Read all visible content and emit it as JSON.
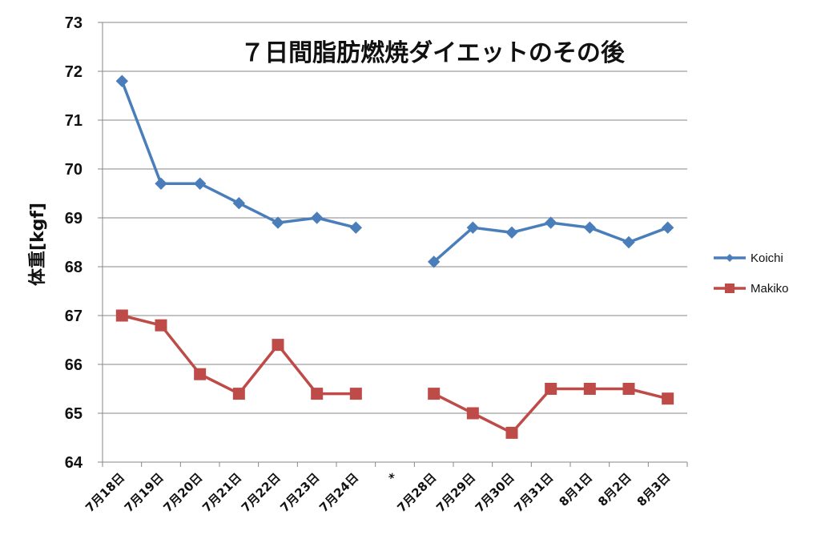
{
  "chart_data": {
    "type": "line",
    "title": "７日間脂肪燃焼ダイエットのその後",
    "ylabel": "体重[kgf]",
    "xlabel": "",
    "ylim": [
      64,
      73
    ],
    "yticks": [
      "64",
      "65",
      "66",
      "67",
      "68",
      "69",
      "70",
      "71",
      "72",
      "73"
    ],
    "categories": [
      "7月18日",
      "7月19日",
      "7月20日",
      "7月21日",
      "7月22日",
      "7月23日",
      "7月24日",
      "*",
      "7月28日",
      "7月29日",
      "7月30日",
      "7月31日",
      "8月1日",
      "8月2日",
      "8月3日"
    ],
    "series": [
      {
        "name": "Koichi",
        "color": "#4A7EBB",
        "marker": "diamond",
        "values": [
          71.8,
          69.7,
          69.7,
          69.3,
          68.9,
          69.0,
          68.8,
          null,
          68.1,
          68.8,
          68.7,
          68.9,
          68.8,
          68.5,
          68.8
        ]
      },
      {
        "name": "Makiko",
        "color": "#BE4B48",
        "marker": "square",
        "values": [
          67.0,
          66.8,
          65.8,
          65.4,
          66.4,
          65.4,
          65.4,
          null,
          65.4,
          65.0,
          64.6,
          65.5,
          65.5,
          65.5,
          65.3
        ]
      }
    ],
    "grid": true,
    "legend": "right"
  }
}
